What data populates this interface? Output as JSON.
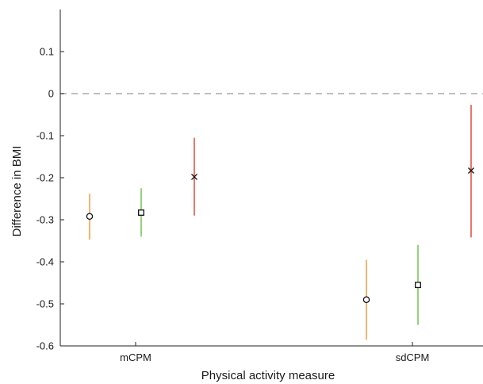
{
  "chart_data": {
    "type": "scatter",
    "title": "",
    "xlabel": "Physical activity measure",
    "ylabel": "Difference in BMI",
    "categories": [
      "mCPM",
      "sdCPM"
    ],
    "ylim": [
      -0.6,
      0.2
    ],
    "yticks": [
      0.1,
      0,
      -0.1,
      -0.2,
      -0.3,
      -0.4,
      -0.5,
      -0.6
    ],
    "ytick_labels": [
      "0.1",
      "0",
      "-0.1",
      "-0.2",
      "-0.3",
      "-0.4",
      "-0.5",
      "-0.6"
    ],
    "reference_line": {
      "y": 0,
      "style": "dashed",
      "color": "#aaaaaa"
    },
    "grid": false,
    "series": [
      {
        "marker": "circle",
        "color": "#f4a14a",
        "points": [
          {
            "category": "mCPM",
            "y": -0.292,
            "low": -0.347,
            "high": -0.238
          },
          {
            "category": "sdCPM",
            "y": -0.49,
            "low": -0.585,
            "high": -0.395
          }
        ]
      },
      {
        "marker": "square",
        "color": "#7cc75a",
        "points": [
          {
            "category": "mCPM",
            "y": -0.283,
            "low": -0.34,
            "high": -0.225
          },
          {
            "category": "sdCPM",
            "y": -0.455,
            "low": -0.55,
            "high": -0.36
          }
        ]
      },
      {
        "marker": "x",
        "color": "#e05545",
        "points": [
          {
            "category": "mCPM",
            "y": -0.198,
            "low": -0.29,
            "high": -0.105
          },
          {
            "category": "sdCPM",
            "y": -0.183,
            "low": -0.342,
            "high": -0.027
          }
        ]
      }
    ]
  }
}
